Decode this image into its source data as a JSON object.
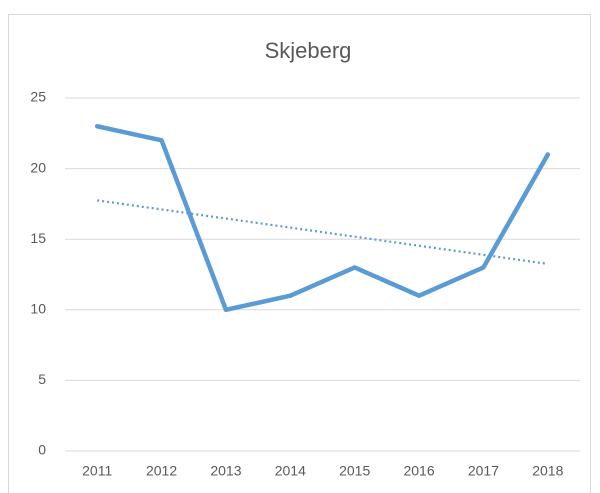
{
  "chart_data": {
    "type": "line",
    "title": "Skjeberg",
    "categories": [
      "2011",
      "2012",
      "2013",
      "2014",
      "2015",
      "2016",
      "2017",
      "2018"
    ],
    "series": [
      {
        "color": "#5b9bd5",
        "values": [
          23,
          22,
          10,
          11,
          13,
          11,
          13,
          21
        ]
      }
    ],
    "trendline": "linear",
    "ylim": [
      0,
      25
    ],
    "yticks": [
      0,
      5,
      10,
      15,
      20,
      25
    ],
    "grid": true
  }
}
